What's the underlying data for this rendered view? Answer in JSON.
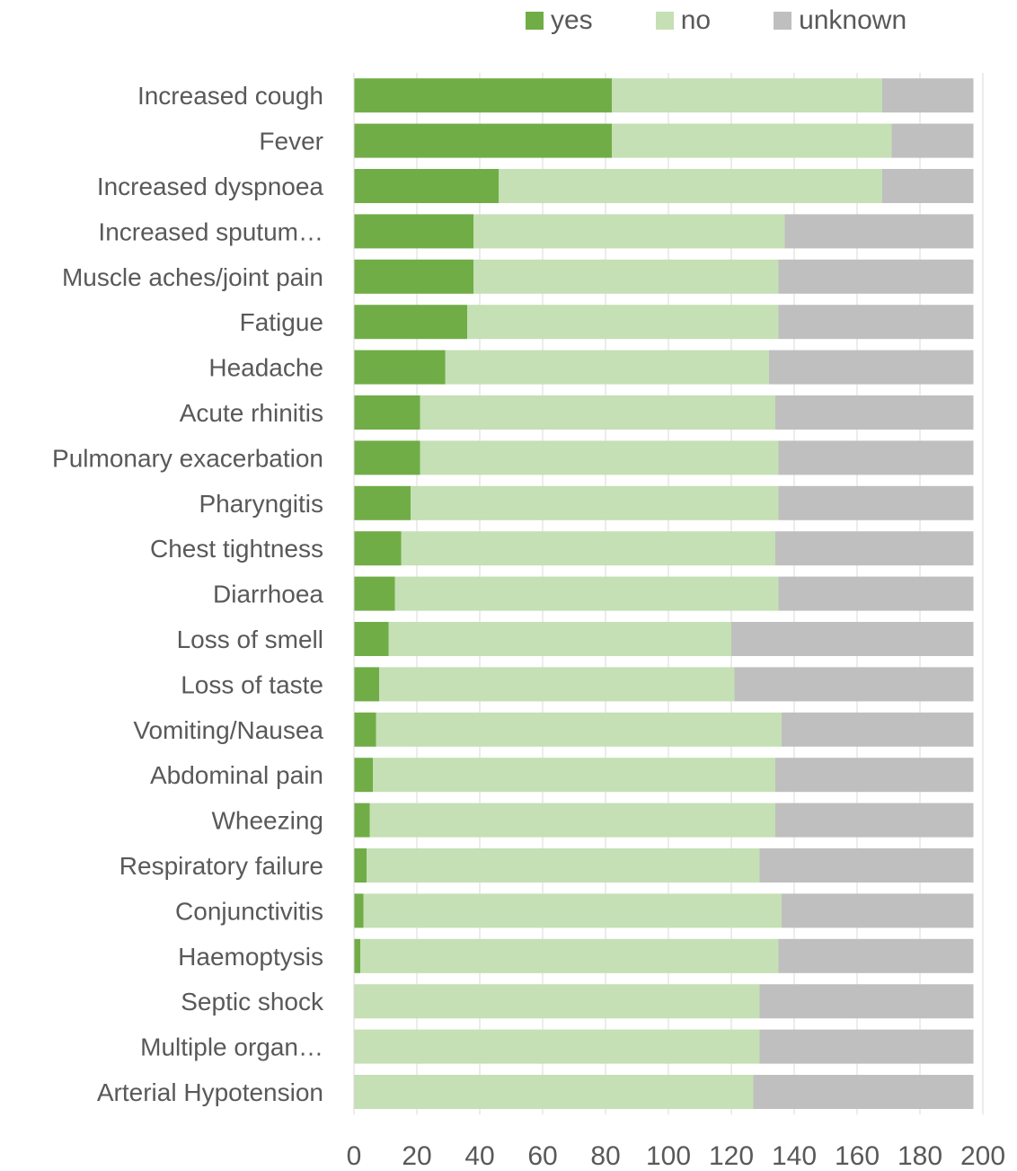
{
  "chart_data": {
    "type": "bar",
    "orientation": "horizontal",
    "stacked": true,
    "title": "",
    "xlabel": "",
    "ylabel": "",
    "xlim": [
      0,
      200
    ],
    "xticks": [
      "0",
      "20",
      "40",
      "60",
      "80",
      "100",
      "120",
      "140",
      "160",
      "180",
      "200"
    ],
    "grid": "vertical",
    "legend_position": "top",
    "categories": [
      "Increased cough",
      "Fever",
      "Increased dyspnoea",
      "Increased sputum…",
      "Muscle aches/joint pain",
      "Fatigue",
      "Headache",
      "Acute rhinitis",
      "Pulmonary exacerbation",
      "Pharyngitis",
      "Chest tightness",
      "Diarrhoea",
      "Loss of smell",
      "Loss of taste",
      "Vomiting/Nausea",
      "Abdominal pain",
      "Wheezing",
      "Respiratory failure",
      "Conjunctivitis",
      "Haemoptysis",
      "Septic shock",
      "Multiple organ…",
      "Arterial Hypotension"
    ],
    "series": [
      {
        "name": "yes",
        "color": "#70AD47",
        "values": [
          82,
          82,
          46,
          38,
          38,
          36,
          29,
          21,
          21,
          18,
          15,
          13,
          11,
          8,
          7,
          6,
          5,
          4,
          3,
          2,
          0,
          0,
          0
        ]
      },
      {
        "name": "no",
        "color": "#C5E0B4",
        "values": [
          86,
          89,
          122,
          99,
          97,
          99,
          103,
          113,
          114,
          117,
          119,
          122,
          109,
          113,
          129,
          128,
          129,
          125,
          133,
          133,
          129,
          129,
          127
        ]
      },
      {
        "name": "unknown",
        "color": "#BFBFBF",
        "values": [
          29,
          26,
          29,
          60,
          62,
          62,
          65,
          63,
          62,
          62,
          63,
          62,
          77,
          76,
          61,
          63,
          63,
          68,
          61,
          62,
          68,
          68,
          70
        ]
      }
    ]
  }
}
